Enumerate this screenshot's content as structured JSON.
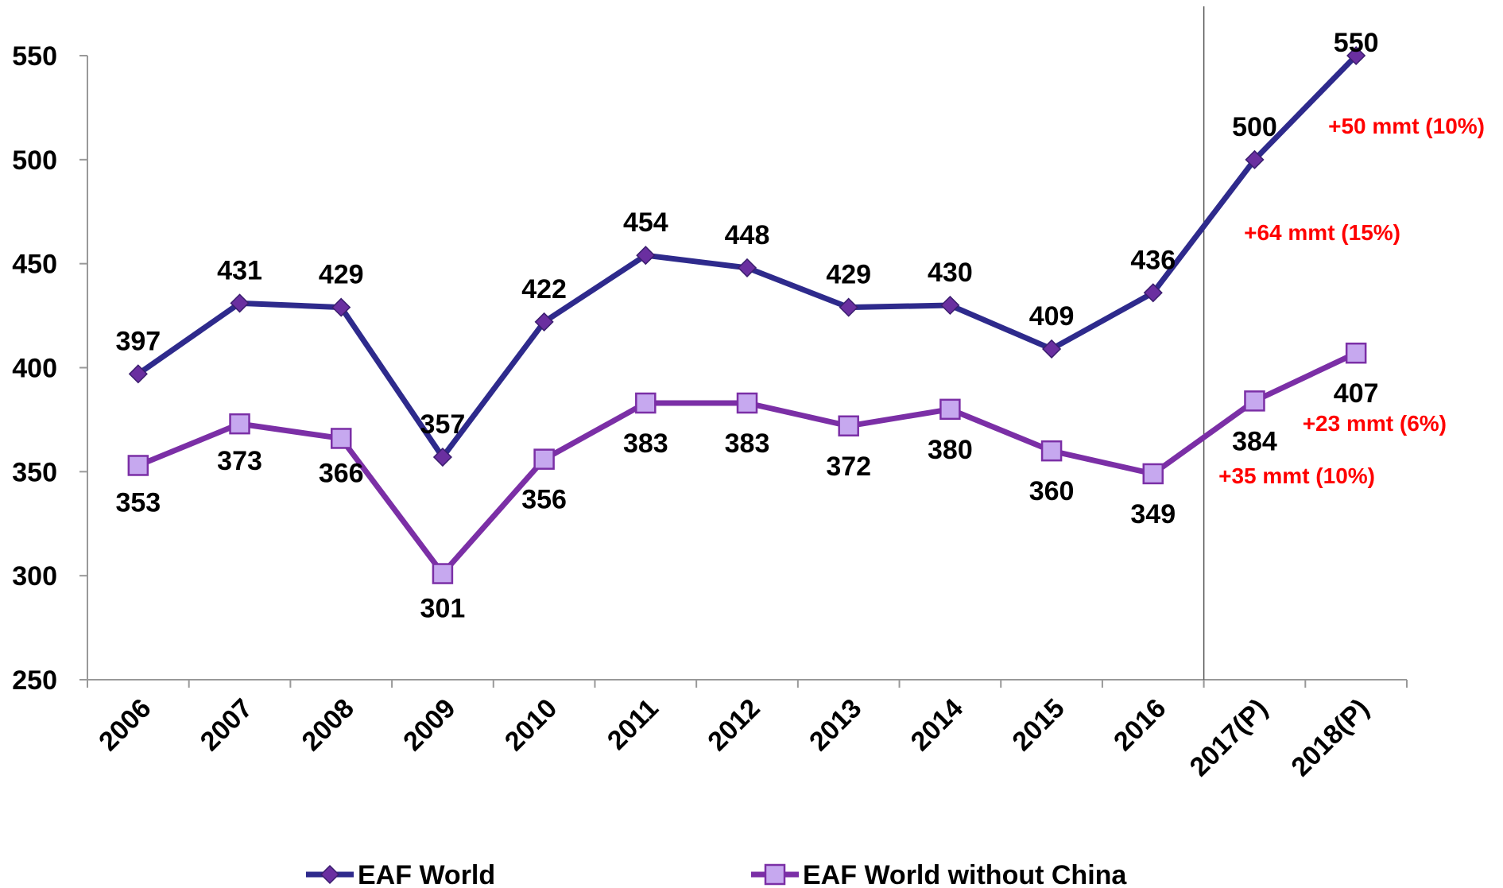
{
  "chart_data": {
    "type": "line",
    "title": "",
    "xlabel": "",
    "ylabel": "",
    "categories": [
      "2006",
      "2007",
      "2008",
      "2009",
      "2010",
      "2011",
      "2012",
      "2013",
      "2014",
      "2015",
      "2016",
      "2017(P)",
      "2018(P)"
    ],
    "ylim": [
      250,
      550
    ],
    "yticks": [
      250,
      300,
      350,
      400,
      450,
      500,
      550
    ],
    "grid": false,
    "legend_position": "bottom",
    "projection_divider_after": "2016",
    "series": [
      {
        "name": "EAF World",
        "color": "#2e2a8c",
        "marker": "diamond",
        "marker_color": "#6a2fa0",
        "values": [
          397,
          431,
          429,
          357,
          422,
          454,
          448,
          429,
          430,
          409,
          436,
          500,
          550
        ]
      },
      {
        "name": "EAF World without China",
        "color": "#7b2fa6",
        "marker": "square",
        "marker_color": "#c6a8ef",
        "values": [
          353,
          373,
          366,
          301,
          356,
          383,
          383,
          372,
          380,
          360,
          349,
          384,
          407
        ]
      }
    ],
    "annotations": [
      {
        "text": "+50 mmt (10%)",
        "series": "EAF World",
        "between": [
          "2017(P)",
          "2018(P)"
        ]
      },
      {
        "text": "+64 mmt (15%)",
        "series": "EAF World",
        "between": [
          "2016",
          "2017(P)"
        ]
      },
      {
        "text": "+23 mmt (6%)",
        "series": "EAF World without China",
        "between": [
          "2017(P)",
          "2018(P)"
        ]
      },
      {
        "text": "+35 mmt (10%)",
        "series": "EAF World without China",
        "between": [
          "2016",
          "2017(P)"
        ]
      }
    ],
    "annotation_color": "#ff0000"
  }
}
